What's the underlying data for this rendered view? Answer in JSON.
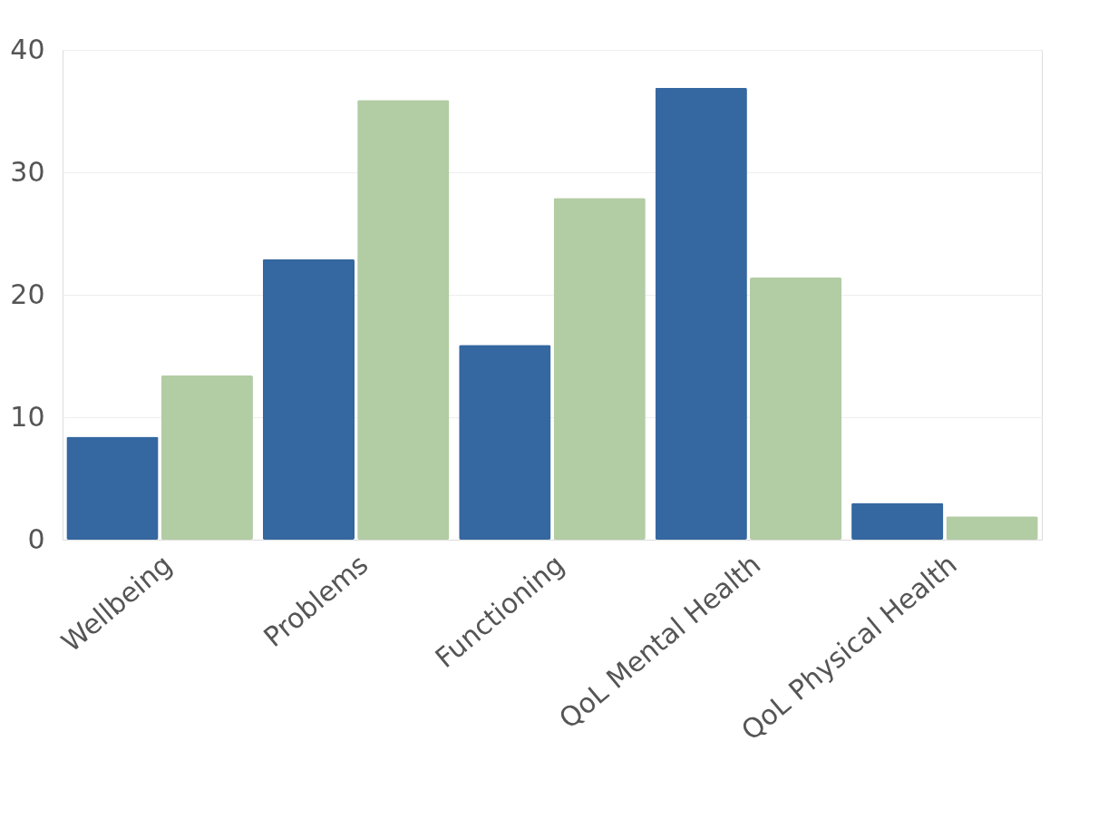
{
  "chart_data": {
    "type": "bar",
    "categories": [
      "Wellbeing",
      "Problems",
      "Functioning",
      "QoL Mental Health",
      "QoL Physical Health"
    ],
    "series": [
      {
        "color": "#3567a0",
        "values": [
          8.4,
          22.9,
          15.9,
          36.9,
          3.0
        ]
      },
      {
        "color": "#b2cca3",
        "values": [
          13.4,
          35.9,
          27.9,
          21.4,
          1.9
        ]
      }
    ],
    "ylim": [
      0,
      40
    ],
    "yticks": [
      0,
      10,
      20,
      30,
      40
    ],
    "grid": "y",
    "legend": false
  }
}
